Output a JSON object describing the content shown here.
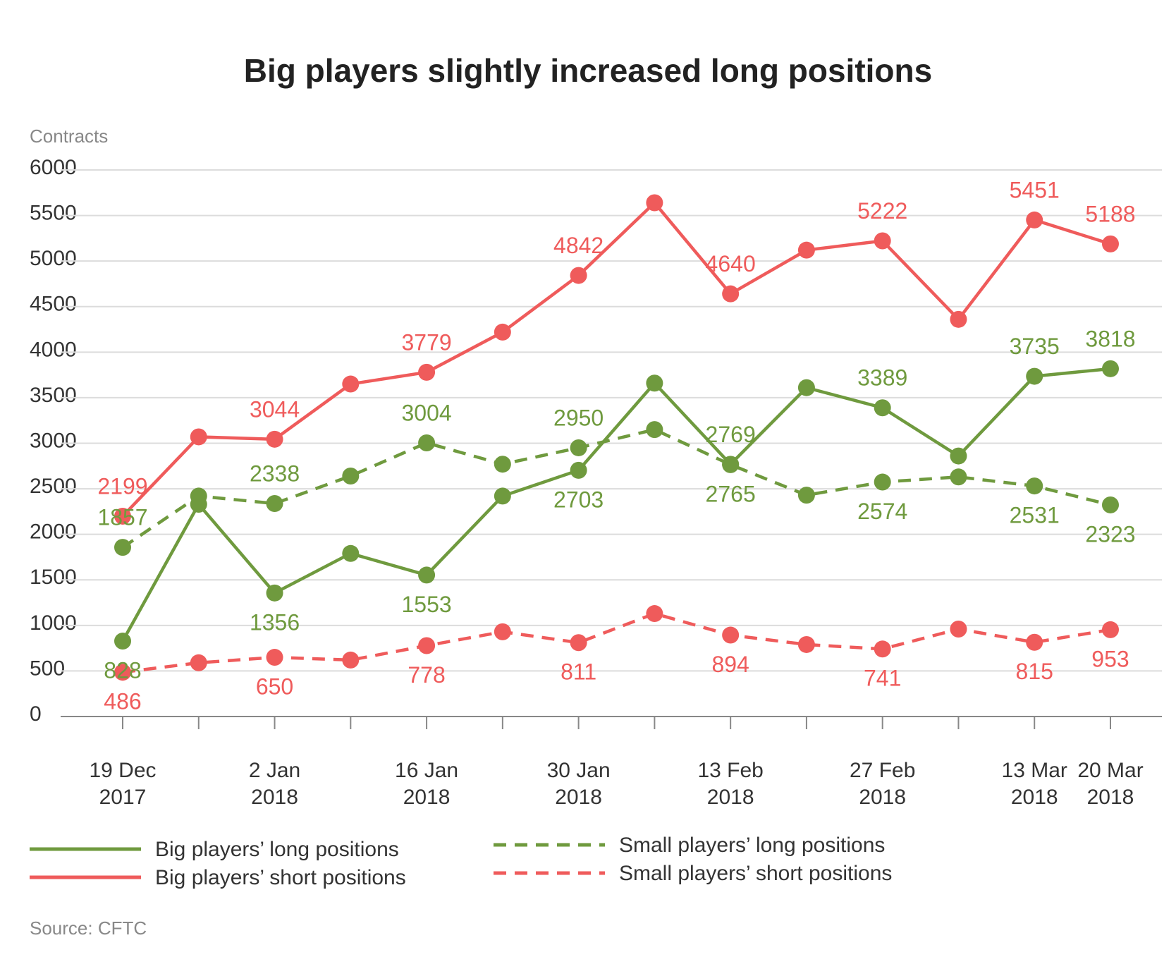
{
  "chart_data": {
    "type": "line",
    "title": "Big players slightly increased long positions",
    "y_label": "Contracts",
    "source": "Source: CFTC",
    "categories": [
      "19 Dec\n2017",
      null,
      "2 Jan\n2018",
      null,
      "16 Jan\n2018",
      null,
      "30 Jan\n2018",
      null,
      "13 Feb\n2018",
      null,
      "27 Feb\n2018",
      null,
      "13 Mar\n2018",
      "20 Mar\n2018"
    ],
    "ylim": [
      0,
      6000
    ],
    "yticks": [
      0,
      500,
      1000,
      1500,
      2000,
      2500,
      3000,
      3500,
      4000,
      4500,
      5000,
      5500,
      6000
    ],
    "grid": true,
    "series": [
      {
        "name": "Big players’ long positions",
        "color": "#6f9a3e",
        "dashed": false,
        "values": [
          828,
          2330,
          1356,
          1790,
          1553,
          2420,
          2703,
          3660,
          2769,
          3610,
          3389,
          2860,
          3735,
          3818
        ],
        "value_labels": [
          "828",
          null,
          "1356",
          null,
          "1553",
          null,
          "2703",
          null,
          "2769",
          null,
          "3389",
          null,
          "3735",
          "3818"
        ]
      },
      {
        "name": "Big players’ short positions",
        "color": "#ef5b5b",
        "dashed": false,
        "values": [
          2199,
          3070,
          3044,
          3650,
          3779,
          4220,
          4842,
          5640,
          4640,
          5120,
          5222,
          4360,
          5451,
          5188
        ],
        "value_labels": [
          "2199",
          null,
          "3044",
          null,
          "3779",
          null,
          "4842",
          null,
          "4640",
          null,
          "5222",
          null,
          "5451",
          "5188"
        ]
      },
      {
        "name": "Small players’ long positions",
        "color": "#6f9a3e",
        "dashed": true,
        "values": [
          1857,
          2420,
          2338,
          2640,
          3004,
          2770,
          2950,
          3150,
          2765,
          2430,
          2574,
          2630,
          2531,
          2323
        ],
        "value_labels": [
          "1857",
          null,
          "2338",
          null,
          "3004",
          null,
          "2950",
          null,
          "2765",
          null,
          "2574",
          null,
          "2531",
          "2323"
        ]
      },
      {
        "name": "Small players’ short positions",
        "color": "#ef5b5b",
        "dashed": true,
        "values": [
          486,
          590,
          650,
          620,
          778,
          930,
          811,
          1130,
          894,
          790,
          741,
          960,
          815,
          953
        ],
        "value_labels": [
          "486",
          null,
          "650",
          null,
          "778",
          null,
          "811",
          null,
          "894",
          null,
          "741",
          null,
          "815",
          "953"
        ]
      }
    ]
  }
}
